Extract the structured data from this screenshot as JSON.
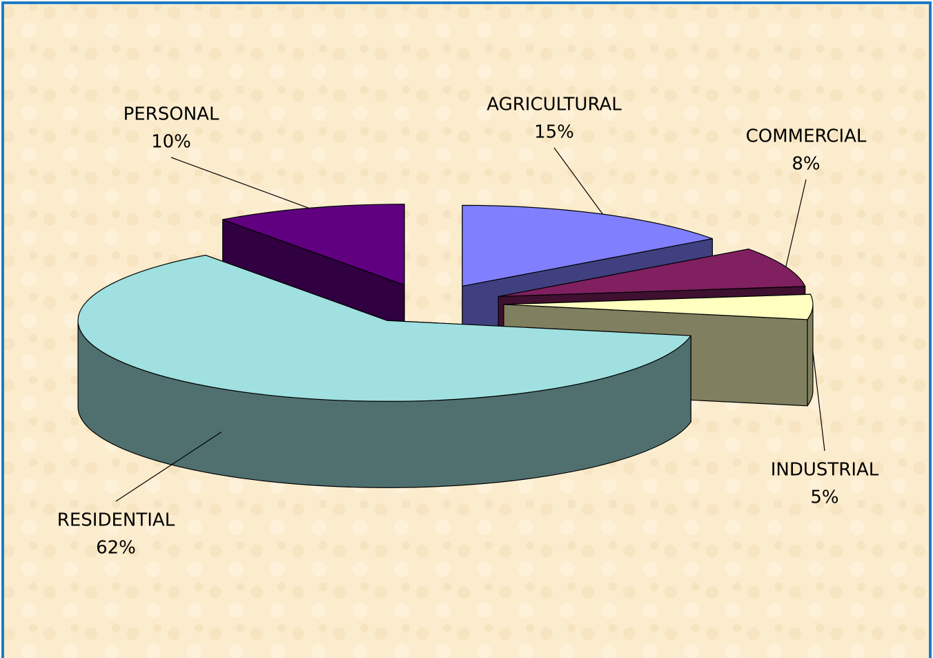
{
  "chart_data": {
    "type": "pie3d",
    "categories": [
      "AGRICULTURAL",
      "COMMERCIAL",
      "INDUSTRIAL",
      "RESIDENTIAL",
      "PERSONAL"
    ],
    "values": [
      15,
      8,
      5,
      62,
      10
    ],
    "value_labels": [
      "15%",
      "8%",
      "5%",
      "62%",
      "10%"
    ],
    "colors": [
      "#8080ff",
      "#802060",
      "#ffffc0",
      "#a0e0e0",
      "#600080"
    ]
  }
}
